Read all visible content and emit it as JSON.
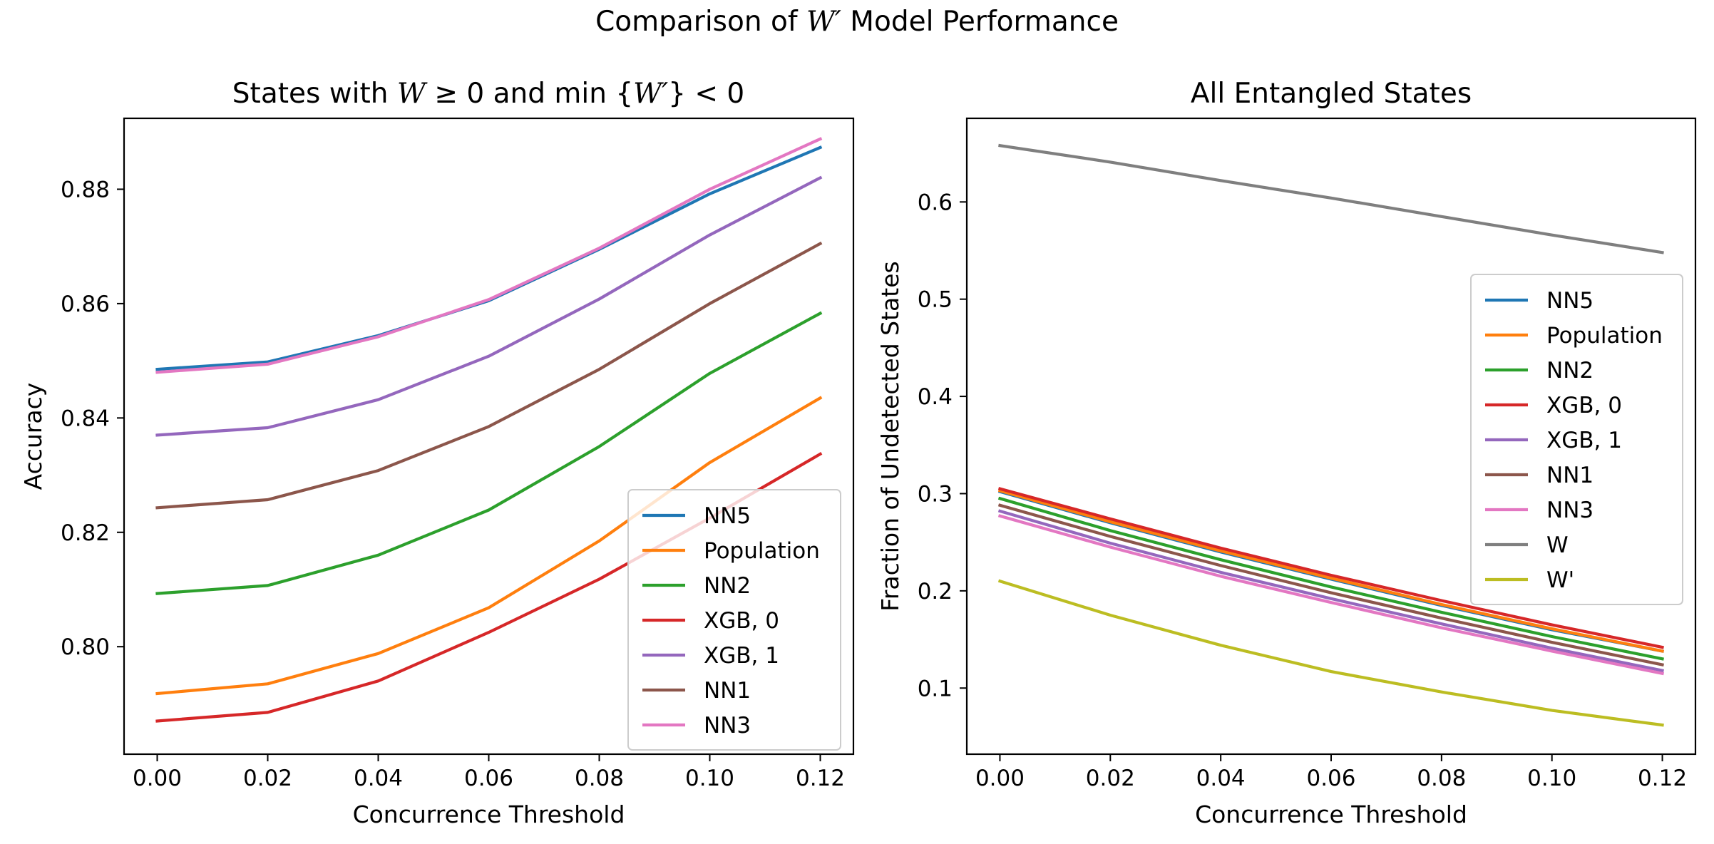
{
  "figure": {
    "suptitle_prefix": "Comparison of ",
    "suptitle_math": "W′",
    "suptitle_suffix": " Model Performance"
  },
  "colors": {
    "NN5": "#1f77b4",
    "Population": "#ff7f0e",
    "NN2": "#2ca02c",
    "XGB, 0": "#d62728",
    "XGB, 1": "#9467bd",
    "NN1": "#8c564b",
    "NN3": "#e377c2",
    "W": "#7f7f7f",
    "W'": "#bcbd22"
  },
  "chart_data": [
    {
      "type": "line",
      "title_parts": [
        {
          "t": "States with ",
          "m": false
        },
        {
          "t": "W",
          "m": true
        },
        {
          "t": " ≥ 0 and min {",
          "m": false
        },
        {
          "t": "W′",
          "m": true
        },
        {
          "t": "} < 0",
          "m": false
        }
      ],
      "xlabel": "Concurrence Threshold",
      "ylabel": "Accuracy",
      "xlim": [
        -0.006,
        0.126
      ],
      "ylim": [
        0.7812,
        0.8924
      ],
      "xticks": [
        "0.00",
        "0.02",
        "0.04",
        "0.06",
        "0.08",
        "0.10",
        "0.12"
      ],
      "yticks": [
        "0.80",
        "0.82",
        "0.84",
        "0.86",
        "0.88"
      ],
      "legend_position": "lower-right",
      "x": [
        0.0,
        0.02,
        0.04,
        0.06,
        0.08,
        0.1,
        0.12
      ],
      "series": [
        {
          "name": "NN5",
          "values": [
            0.8485,
            0.8498,
            0.8544,
            0.8605,
            0.8695,
            0.8792,
            0.8873
          ]
        },
        {
          "name": "Population",
          "values": [
            0.7918,
            0.7935,
            0.7988,
            0.8068,
            0.8185,
            0.8322,
            0.8435
          ]
        },
        {
          "name": "NN2",
          "values": [
            0.8093,
            0.8107,
            0.816,
            0.8239,
            0.835,
            0.8478,
            0.8583
          ]
        },
        {
          "name": "XGB, 0",
          "values": [
            0.787,
            0.7885,
            0.794,
            0.8025,
            0.8118,
            0.8225,
            0.8337
          ]
        },
        {
          "name": "XGB, 1",
          "values": [
            0.837,
            0.8383,
            0.8432,
            0.8508,
            0.8608,
            0.872,
            0.882
          ]
        },
        {
          "name": "NN1",
          "values": [
            0.8243,
            0.8257,
            0.8308,
            0.8385,
            0.8485,
            0.86,
            0.8705
          ]
        },
        {
          "name": "NN3",
          "values": [
            0.848,
            0.8494,
            0.8542,
            0.8607,
            0.8697,
            0.88,
            0.8888
          ]
        }
      ]
    },
    {
      "type": "line",
      "title_parts": [
        {
          "t": "All Entangled States",
          "m": false
        }
      ],
      "xlabel": "Concurrence Threshold",
      "ylabel": "Fraction of Undetected States",
      "xlim": [
        -0.006,
        0.126
      ],
      "ylim": [
        0.032,
        0.686
      ],
      "xticks": [
        "0.00",
        "0.02",
        "0.04",
        "0.06",
        "0.08",
        "0.10",
        "0.12"
      ],
      "yticks": [
        "0.1",
        "0.2",
        "0.3",
        "0.4",
        "0.5",
        "0.6"
      ],
      "legend_position": "center-right",
      "x": [
        0.0,
        0.02,
        0.04,
        0.06,
        0.08,
        0.1,
        0.12
      ],
      "series": [
        {
          "name": "NN5",
          "values": [
            0.302,
            0.27,
            0.24,
            0.212,
            0.185,
            0.16,
            0.138
          ]
        },
        {
          "name": "Population",
          "values": [
            0.303,
            0.271,
            0.241,
            0.213,
            0.186,
            0.161,
            0.138
          ]
        },
        {
          "name": "NN2",
          "values": [
            0.295,
            0.262,
            0.232,
            0.204,
            0.178,
            0.153,
            0.13
          ]
        },
        {
          "name": "XGB, 0",
          "values": [
            0.305,
            0.274,
            0.244,
            0.216,
            0.19,
            0.165,
            0.142
          ]
        },
        {
          "name": "XGB, 1",
          "values": [
            0.282,
            0.249,
            0.219,
            0.192,
            0.166,
            0.141,
            0.118
          ]
        },
        {
          "name": "NN1",
          "values": [
            0.288,
            0.256,
            0.226,
            0.198,
            0.172,
            0.147,
            0.124
          ]
        },
        {
          "name": "NN3",
          "values": [
            0.277,
            0.245,
            0.215,
            0.188,
            0.162,
            0.138,
            0.115
          ]
        },
        {
          "name": "W",
          "values": [
            0.658,
            0.641,
            0.622,
            0.604,
            0.585,
            0.566,
            0.548
          ]
        },
        {
          "name": "W'",
          "values": [
            0.21,
            0.175,
            0.144,
            0.117,
            0.096,
            0.077,
            0.062
          ]
        }
      ]
    }
  ]
}
